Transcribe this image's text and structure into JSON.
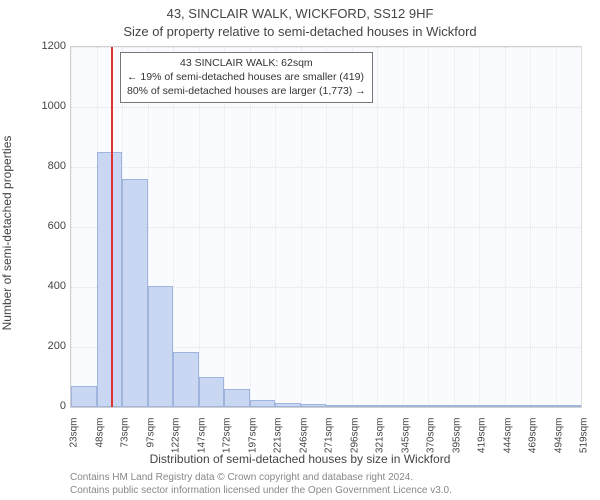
{
  "title_line1": "43, SINCLAIR WALK, WICKFORD, SS12 9HF",
  "title_line2": "Size of property relative to semi-detached houses in Wickford",
  "y_axis_label": "Number of semi-detached properties",
  "x_axis_label": "Distribution of semi-detached houses by size in Wickford",
  "footnote1": "Contains HM Land Registry data © Crown copyright and database right 2024.",
  "footnote2": "Contains public sector information licensed under the Open Government Licence v3.0.",
  "chart": {
    "type": "histogram",
    "plot_background": "#fafbff",
    "plot_border": "#d0d0d0",
    "bar_fill": "#c9d7f2",
    "bar_border": "#9fb5de",
    "marker_color": "#d33",
    "grid_color": "#e3e3e3",
    "yticks": [
      0,
      200,
      400,
      600,
      800,
      1000,
      1200
    ],
    "ylim": [
      0,
      1200
    ],
    "xtick_labels": [
      "23sqm",
      "48sqm",
      "73sqm",
      "97sqm",
      "122sqm",
      "147sqm",
      "172sqm",
      "197sqm",
      "221sqm",
      "246sqm",
      "271sqm",
      "296sqm",
      "321sqm",
      "345sqm",
      "370sqm",
      "395sqm",
      "419sqm",
      "444sqm",
      "469sqm",
      "494sqm",
      "519sqm"
    ],
    "bar_values": [
      70,
      850,
      760,
      405,
      185,
      100,
      60,
      25,
      15,
      10,
      8,
      5,
      5,
      3,
      2,
      2,
      2,
      1,
      1,
      1
    ],
    "marker_value_sqm": 62,
    "x_min": 23,
    "x_max": 519
  },
  "annotation": {
    "line1": "43 SINCLAIR WALK: 62sqm",
    "line2": "← 19% of semi-detached houses are smaller (419)",
    "line3": "80% of semi-detached houses are larger (1,773) →"
  }
}
